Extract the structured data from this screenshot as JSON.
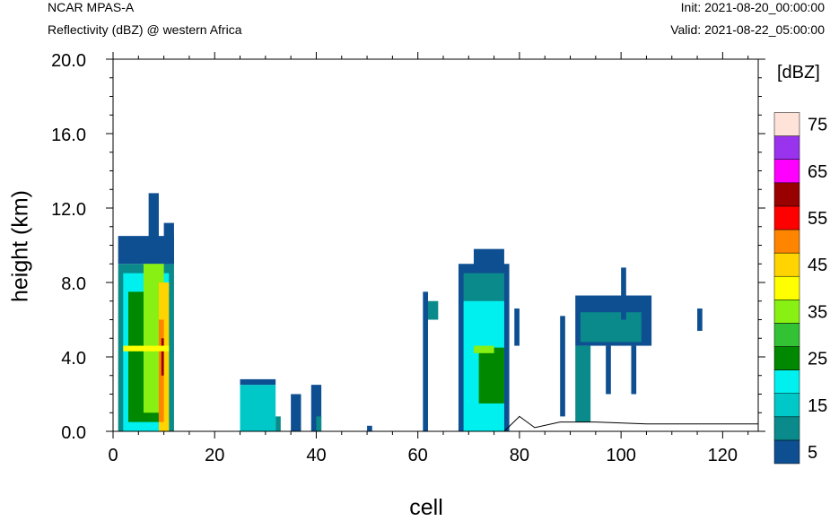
{
  "header": {
    "model": "NCAR MPAS-A",
    "subtitle": "Reflectivity (dBZ) @ western Africa",
    "init": "Init: 2021-08-20_00:00:00",
    "valid": "Valid: 2021-08-22_05:00:00"
  },
  "chart_data": {
    "type": "heatmap",
    "title": "Reflectivity (dBZ) @ western Africa",
    "xlabel": "cell",
    "ylabel": "height (km)",
    "xlim": [
      0,
      127
    ],
    "ylim": [
      0,
      20
    ],
    "x_ticks": [
      0,
      20,
      40,
      60,
      80,
      100,
      120
    ],
    "y_ticks": [
      0,
      4,
      8,
      12,
      16,
      20
    ],
    "y_tick_labels": [
      "0.0",
      "4.0",
      "8.0",
      "12.0",
      "16.0",
      "20.0"
    ],
    "colorbar": {
      "unit": "[dBZ]",
      "labels": [
        "5",
        "15",
        "25",
        "35",
        "45",
        "55",
        "65",
        "75"
      ],
      "levels": [
        5,
        10,
        15,
        20,
        25,
        30,
        35,
        40,
        45,
        50,
        55,
        60,
        65,
        70,
        75
      ],
      "colors": [
        "#0e4f92",
        "#0a8a8a",
        "#00c8c8",
        "#00f0f0",
        "#008800",
        "#33c233",
        "#88f012",
        "#ffff00",
        "#ffd400",
        "#ff8400",
        "#ff0000",
        "#990000",
        "#ff00ff",
        "#9933ee",
        "#ffe2d8"
      ]
    },
    "columns": [
      {
        "x0": 1,
        "x1": 12,
        "top": 10.5,
        "spans": [
          [
            0,
            9,
            1
          ],
          [
            9,
            10.5,
            0
          ]
        ]
      },
      {
        "x0": 2,
        "x1": 11,
        "top": 8.5,
        "spans": [
          [
            0,
            8.5,
            3
          ]
        ]
      },
      {
        "x0": 3,
        "x1": 11,
        "top": 7.5,
        "spans": [
          [
            0.5,
            7.5,
            4
          ]
        ]
      },
      {
        "x0": 6,
        "x1": 10,
        "top": 9,
        "spans": [
          [
            1,
            9,
            6
          ]
        ]
      },
      {
        "x0": 9,
        "x1": 11,
        "top": 8,
        "spans": [
          [
            0,
            8,
            8
          ]
        ]
      },
      {
        "x0": 9,
        "x1": 10,
        "top": 6,
        "spans": [
          [
            0.5,
            6,
            9
          ]
        ]
      },
      {
        "x0": 9.5,
        "x1": 10,
        "top": 5,
        "spans": [
          [
            3,
            5,
            11
          ]
        ]
      },
      {
        "x0": 2,
        "x1": 11,
        "top": 4.6,
        "spans": [
          [
            4.3,
            4.6,
            7
          ]
        ]
      },
      {
        "x0": 7,
        "x1": 9,
        "top": 12.8,
        "spans": [
          [
            10,
            12.8,
            0
          ]
        ]
      },
      {
        "x0": 10,
        "x1": 12,
        "top": 11.2,
        "spans": [
          [
            9,
            11.2,
            0
          ]
        ]
      },
      {
        "x0": 25,
        "x1": 32,
        "top": 2.8,
        "spans": [
          [
            0,
            2.5,
            2
          ],
          [
            2.5,
            2.8,
            0
          ]
        ]
      },
      {
        "x0": 32,
        "x1": 33,
        "top": 0.8,
        "spans": [
          [
            0,
            0.8,
            1
          ]
        ]
      },
      {
        "x0": 35,
        "x1": 37,
        "top": 2.0,
        "spans": [
          [
            0,
            2.0,
            0
          ]
        ]
      },
      {
        "x0": 39,
        "x1": 41,
        "top": 2.5,
        "spans": [
          [
            0,
            2.5,
            0
          ]
        ]
      },
      {
        "x0": 40,
        "x1": 41,
        "top": 0.8,
        "spans": [
          [
            0,
            0.8,
            1
          ]
        ]
      },
      {
        "x0": 50,
        "x1": 51,
        "top": 0.3,
        "spans": [
          [
            0,
            0.3,
            0
          ]
        ]
      },
      {
        "x0": 61,
        "x1": 62,
        "top": 7.5,
        "spans": [
          [
            0,
            7.5,
            0
          ]
        ]
      },
      {
        "x0": 62,
        "x1": 64,
        "top": 7.0,
        "spans": [
          [
            6.0,
            7.0,
            1
          ]
        ]
      },
      {
        "x0": 68,
        "x1": 78,
        "top": 9.0,
        "spans": [
          [
            0,
            9.0,
            0
          ]
        ]
      },
      {
        "x0": 69,
        "x1": 77,
        "top": 8.5,
        "spans": [
          [
            0,
            8.5,
            1
          ]
        ]
      },
      {
        "x0": 69,
        "x1": 77,
        "top": 7.0,
        "spans": [
          [
            0,
            7.0,
            3
          ]
        ]
      },
      {
        "x0": 72,
        "x1": 77,
        "top": 4.5,
        "spans": [
          [
            1.5,
            4.5,
            4
          ]
        ]
      },
      {
        "x0": 71,
        "x1": 75,
        "top": 4.6,
        "spans": [
          [
            4.2,
            4.6,
            6
          ]
        ]
      },
      {
        "x0": 71,
        "x1": 77,
        "top": 9.8,
        "spans": [
          [
            8.8,
            9.8,
            0
          ]
        ]
      },
      {
        "x0": 79,
        "x1": 80,
        "top": 6.6,
        "spans": [
          [
            4.6,
            6.6,
            0
          ]
        ]
      },
      {
        "x0": 88,
        "x1": 89,
        "top": 6.2,
        "spans": [
          [
            0.8,
            6.2,
            0
          ]
        ]
      },
      {
        "x0": 91,
        "x1": 106,
        "top": 7.3,
        "spans": [
          [
            4.6,
            7.3,
            0
          ]
        ]
      },
      {
        "x0": 92,
        "x1": 104,
        "top": 6.4,
        "spans": [
          [
            4.8,
            6.4,
            1
          ]
        ]
      },
      {
        "x0": 91,
        "x1": 94,
        "top": 4.6,
        "spans": [
          [
            0.5,
            4.6,
            1
          ]
        ]
      },
      {
        "x0": 97,
        "x1": 98,
        "top": 4.6,
        "spans": [
          [
            2.0,
            4.6,
            0
          ]
        ]
      },
      {
        "x0": 100,
        "x1": 101,
        "top": 8.8,
        "spans": [
          [
            6.0,
            8.8,
            0
          ]
        ]
      },
      {
        "x0": 102,
        "x1": 103,
        "top": 4.6,
        "spans": [
          [
            2.0,
            4.6,
            0
          ]
        ]
      },
      {
        "x0": 115,
        "x1": 116,
        "top": 6.6,
        "spans": [
          [
            5.4,
            6.6,
            0
          ]
        ]
      }
    ],
    "terrain": [
      [
        0,
        0
      ],
      [
        77,
        0
      ],
      [
        80,
        0.8
      ],
      [
        83,
        0.2
      ],
      [
        88,
        0.5
      ],
      [
        95,
        0.5
      ],
      [
        105,
        0.4
      ],
      [
        115,
        0.4
      ],
      [
        127,
        0.4
      ]
    ]
  }
}
